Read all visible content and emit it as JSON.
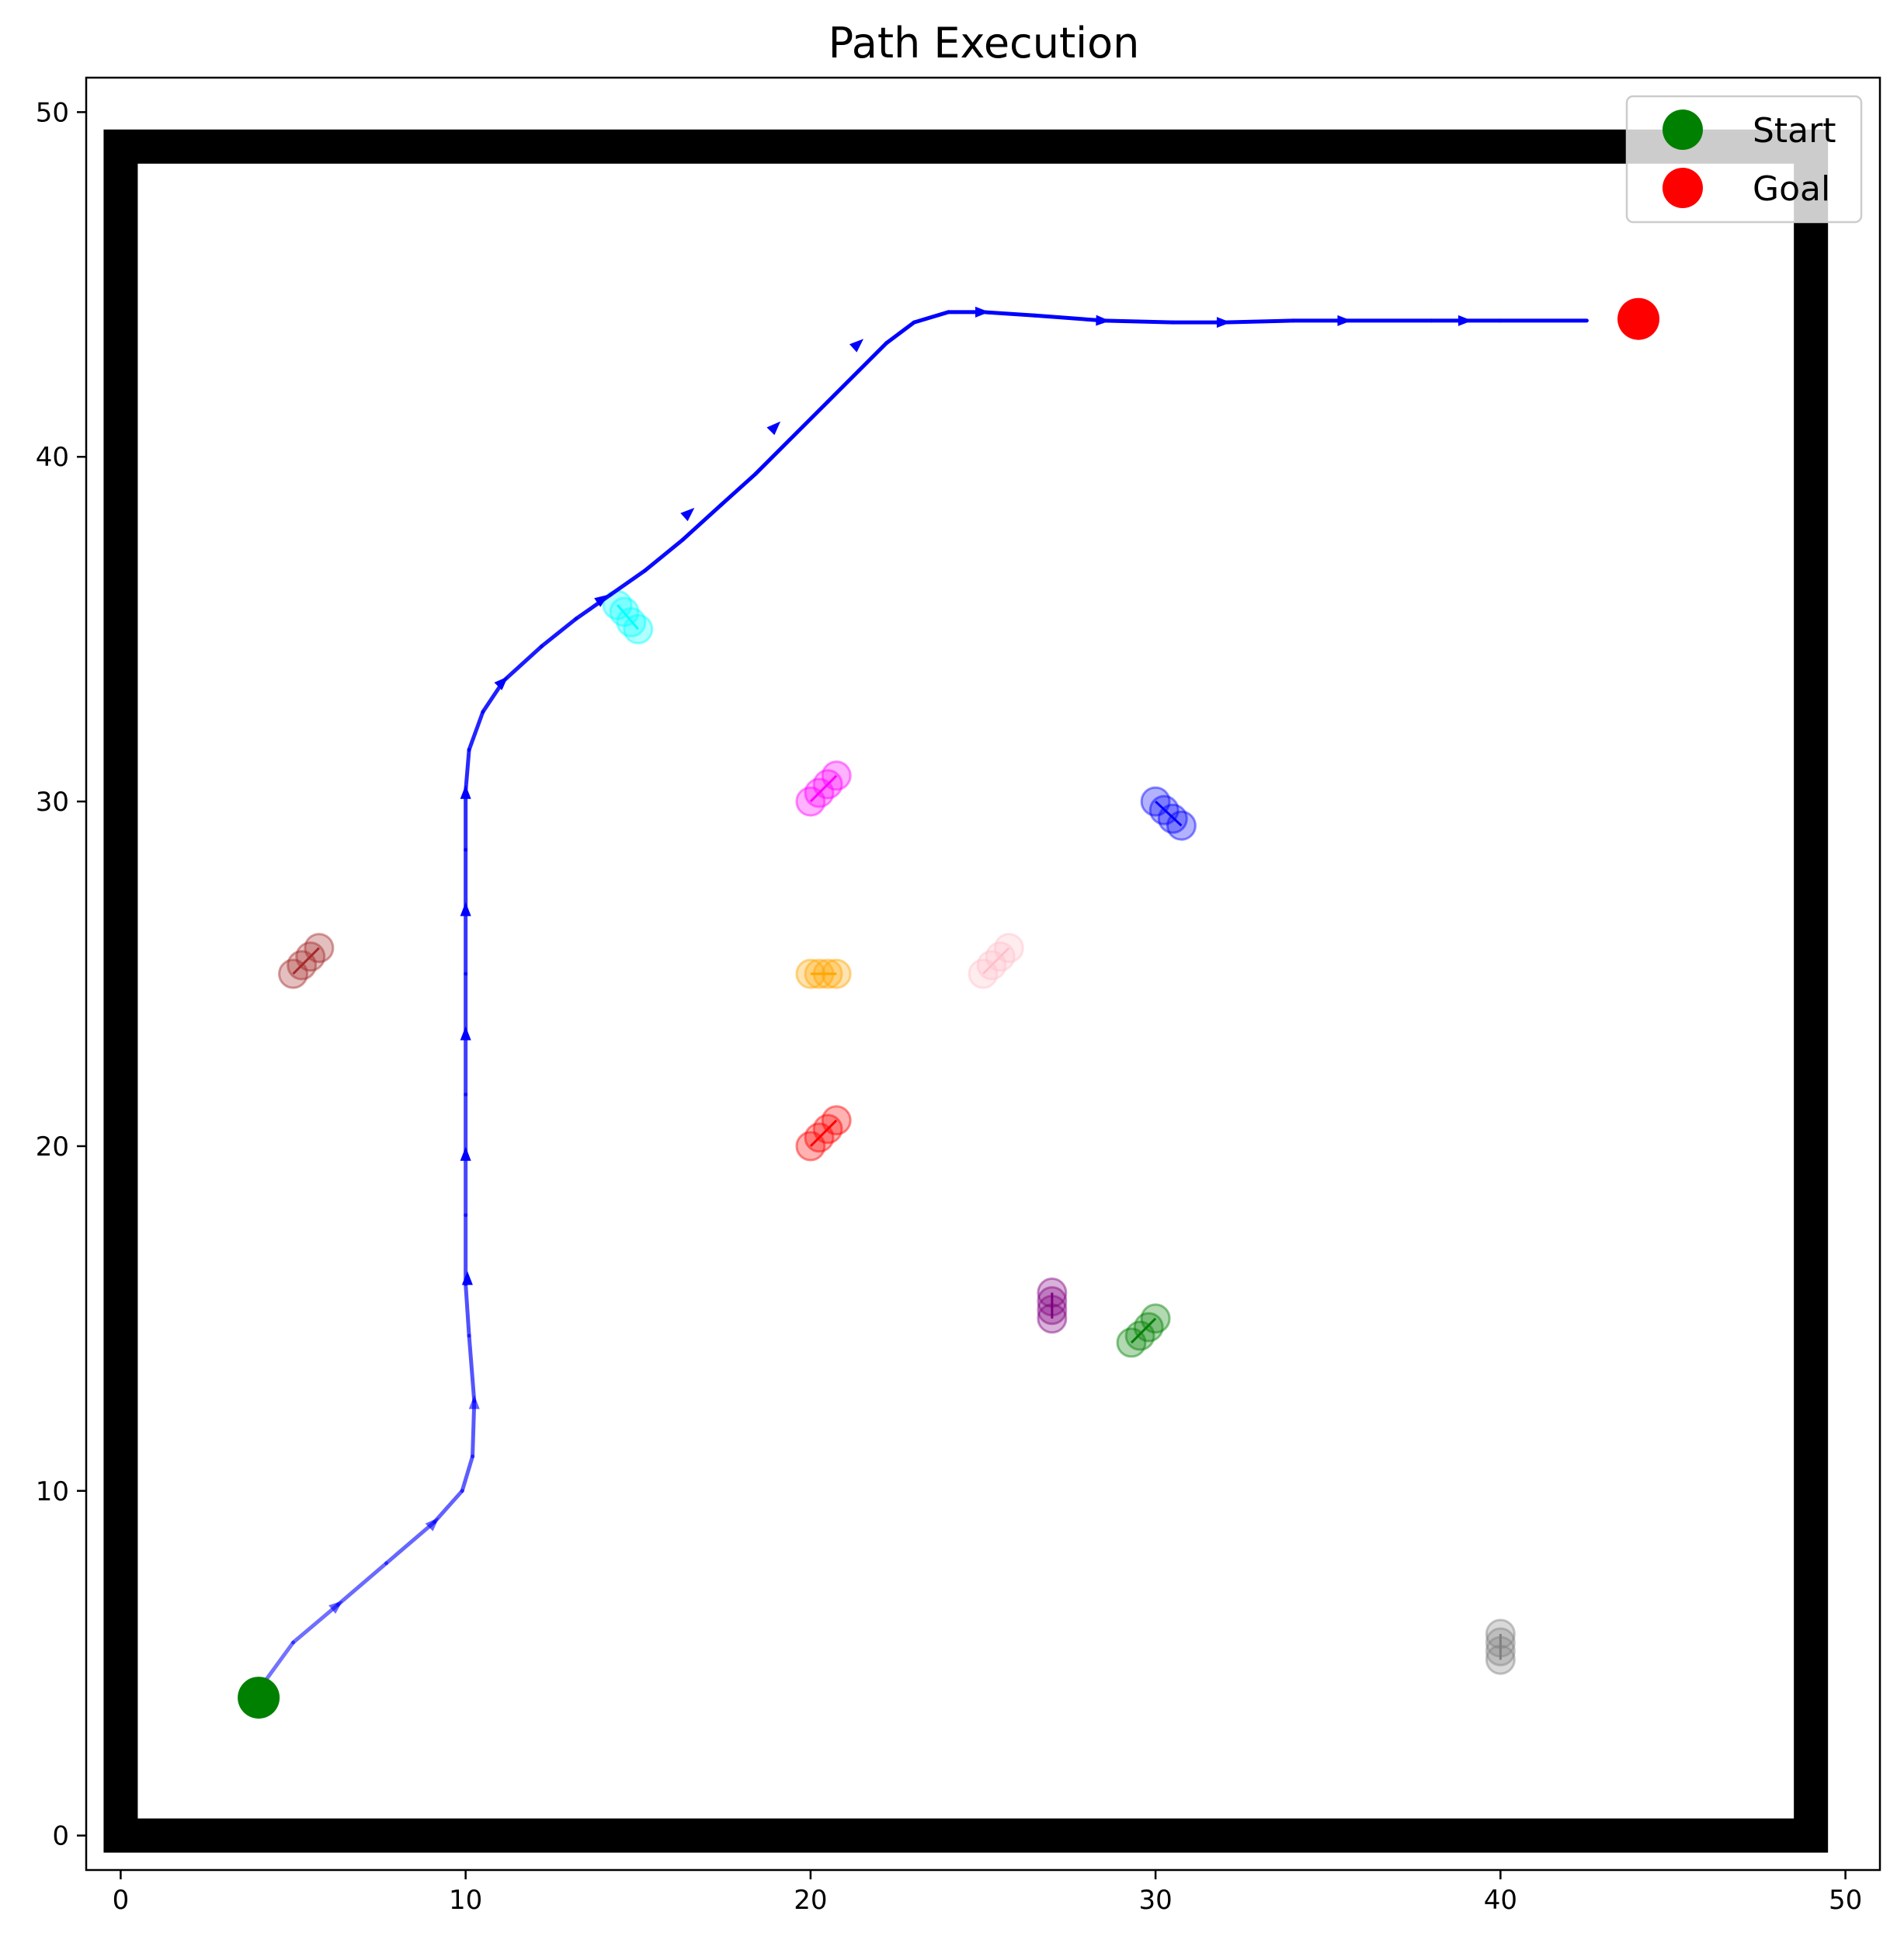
{
  "chart_data": {
    "type": "line",
    "title": "Path Execution",
    "xlabel": "",
    "ylabel": "",
    "xlim": [
      -1,
      51
    ],
    "ylim": [
      -1,
      51
    ],
    "xticks": [
      0,
      10,
      20,
      30,
      40,
      50
    ],
    "yticks": [
      0,
      10,
      20,
      30,
      40,
      50
    ],
    "grid": false,
    "legend_position": "top-right",
    "legend": [
      {
        "label": "Start",
        "color": "#008000"
      },
      {
        "label": "Goal",
        "color": "#ff0000"
      }
    ],
    "walls": {
      "xmin": 0,
      "xmax": 49,
      "ymin": 0,
      "ymax": 49,
      "color": "#000000"
    },
    "start": {
      "x": 4,
      "y": 4,
      "color": "#008000"
    },
    "goal": {
      "x": 44,
      "y": 44,
      "color": "#ff0000"
    },
    "path": {
      "color": "#0000ff",
      "points": [
        [
          4.2,
          4.5
        ],
        [
          5.0,
          5.6
        ],
        [
          6.3,
          6.7
        ],
        [
          7.7,
          7.9
        ],
        [
          9.1,
          9.1
        ],
        [
          9.9,
          10.0
        ],
        [
          10.2,
          11.0
        ],
        [
          10.25,
          12.6
        ],
        [
          10.1,
          14.5
        ],
        [
          10.0,
          16.0
        ],
        [
          10.0,
          18.0
        ],
        [
          10.0,
          19.8
        ],
        [
          10.0,
          21.5
        ],
        [
          10.0,
          23.3
        ],
        [
          10.0,
          25.0
        ],
        [
          10.0,
          26.9
        ],
        [
          10.0,
          28.6
        ],
        [
          10.0,
          30.3
        ],
        [
          10.1,
          31.5
        ],
        [
          10.5,
          32.6
        ],
        [
          11.1,
          33.5
        ],
        [
          12.2,
          34.5
        ],
        [
          13.2,
          35.3
        ],
        [
          14.2,
          36.0
        ],
        [
          15.2,
          36.7
        ],
        [
          16.3,
          37.6
        ],
        [
          17.4,
          38.6
        ],
        [
          18.4,
          39.5
        ],
        [
          19.4,
          40.5
        ],
        [
          20.5,
          41.6
        ],
        [
          21.4,
          42.5
        ],
        [
          22.2,
          43.3
        ],
        [
          23.0,
          43.9
        ],
        [
          24.0,
          44.2
        ],
        [
          25.0,
          44.2
        ],
        [
          26.5,
          44.1
        ],
        [
          28.5,
          43.95
        ],
        [
          30.5,
          43.9
        ],
        [
          32.0,
          43.9
        ],
        [
          34.0,
          43.95
        ],
        [
          35.5,
          43.95
        ],
        [
          38.0,
          43.95
        ],
        [
          40.0,
          43.95
        ],
        [
          42.5,
          43.95
        ]
      ],
      "arrows": [
        {
          "x": 6.3,
          "y": 6.7,
          "angle": 40
        },
        {
          "x": 9.1,
          "y": 9.1,
          "angle": 45
        },
        {
          "x": 10.25,
          "y": 12.6,
          "angle": 90
        },
        {
          "x": 10.05,
          "y": 16.2,
          "angle": 90
        },
        {
          "x": 10.0,
          "y": 19.8,
          "angle": 90
        },
        {
          "x": 10.0,
          "y": 23.3,
          "angle": 90
        },
        {
          "x": 10.0,
          "y": 26.9,
          "angle": 90
        },
        {
          "x": 10.0,
          "y": 30.3,
          "angle": 90
        },
        {
          "x": 11.1,
          "y": 33.5,
          "angle": 45
        },
        {
          "x": 14.0,
          "y": 35.9,
          "angle": 35
        },
        {
          "x": 16.5,
          "y": 38.4,
          "angle": 42
        },
        {
          "x": 19.0,
          "y": 40.9,
          "angle": 45
        },
        {
          "x": 21.4,
          "y": 43.3,
          "angle": 42
        },
        {
          "x": 25.0,
          "y": 44.2,
          "angle": 0
        },
        {
          "x": 28.5,
          "y": 43.95,
          "angle": -2
        },
        {
          "x": 32.0,
          "y": 43.9,
          "angle": 0
        },
        {
          "x": 35.5,
          "y": 43.95,
          "angle": 0
        },
        {
          "x": 39.0,
          "y": 43.95,
          "angle": 0
        }
      ]
    },
    "obstacles": [
      {
        "color": "#00ffff",
        "alpha": 0.3,
        "x": [
          14.4,
          14.6,
          14.8,
          15.0
        ],
        "y": [
          35.7,
          35.5,
          35.2,
          35.0
        ]
      },
      {
        "color": "#ff00ff",
        "alpha": 0.3,
        "x": [
          20.0,
          20.25,
          20.5,
          20.75
        ],
        "y": [
          30.0,
          30.25,
          30.5,
          30.75
        ]
      },
      {
        "color": "#0000ff",
        "alpha": 0.3,
        "x": [
          30.0,
          30.25,
          30.5,
          30.75
        ],
        "y": [
          30.0,
          29.75,
          29.5,
          29.3
        ]
      },
      {
        "color": "#a52a2a",
        "alpha": 0.3,
        "x": [
          5.0,
          5.25,
          5.5,
          5.75
        ],
        "y": [
          25.0,
          25.25,
          25.5,
          25.75
        ]
      },
      {
        "color": "#ffa500",
        "alpha": 0.3,
        "x": [
          20.0,
          20.25,
          20.5,
          20.75
        ],
        "y": [
          25.0,
          25.0,
          25.0,
          25.0
        ]
      },
      {
        "color": "#ffc0cb",
        "alpha": 0.3,
        "x": [
          25.0,
          25.25,
          25.5,
          25.75
        ],
        "y": [
          25.0,
          25.25,
          25.5,
          25.75
        ]
      },
      {
        "color": "#ff0000",
        "alpha": 0.3,
        "x": [
          20.0,
          20.25,
          20.5,
          20.75
        ],
        "y": [
          20.0,
          20.25,
          20.5,
          20.75
        ]
      },
      {
        "color": "#800080",
        "alpha": 0.3,
        "x": [
          27.0,
          27.0,
          27.0,
          27.0
        ],
        "y": [
          15.0,
          15.25,
          15.5,
          15.75
        ]
      },
      {
        "color": "#008000",
        "alpha": 0.3,
        "x": [
          29.3,
          29.55,
          29.8,
          30.0
        ],
        "y": [
          14.3,
          14.5,
          14.75,
          15.0
        ]
      },
      {
        "color": "#808080",
        "alpha": 0.3,
        "x": [
          40.0,
          40.0,
          40.0,
          40.0
        ],
        "y": [
          5.1,
          5.35,
          5.6,
          5.85
        ]
      }
    ]
  }
}
